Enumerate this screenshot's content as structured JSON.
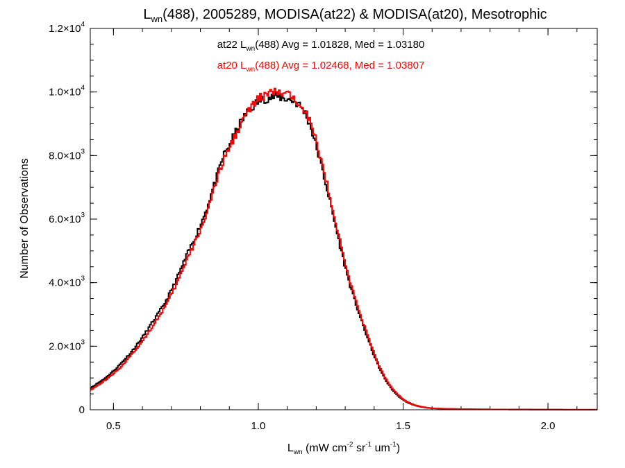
{
  "chart_data": {
    "type": "line",
    "style": "step-histogram",
    "title": {
      "pre": "L",
      "sub": "wn",
      "post": "(488), 2005289, MODISA(at22) & MODISA(at20), Mesotrophic"
    },
    "xlabel": {
      "pre": "L",
      "sub": "wn",
      "post": " (mW cm",
      "sup1": "-2",
      "mid": " sr",
      "sup2": "-1",
      "mid2": " um",
      "sup3": "-1",
      "end": ")"
    },
    "ylabel": "Number of Observations",
    "xlim": [
      0.42,
      2.17
    ],
    "ylim": [
      0,
      12000
    ],
    "xticks": [
      {
        "value": 0.5,
        "label": "0.5"
      },
      {
        "value": 1.0,
        "label": "1.0"
      },
      {
        "value": 1.5,
        "label": "1.5"
      },
      {
        "value": 2.0,
        "label": "2.0"
      }
    ],
    "yticks": [
      {
        "value": 0,
        "mant": "0",
        "exp": ""
      },
      {
        "value": 2000,
        "mant": "2.0×10",
        "exp": "3"
      },
      {
        "value": 4000,
        "mant": "4.0×10",
        "exp": "3"
      },
      {
        "value": 6000,
        "mant": "6.0×10",
        "exp": "3"
      },
      {
        "value": 8000,
        "mant": "8.0×10",
        "exp": "3"
      },
      {
        "value": 10000,
        "mant": "1.0×10",
        "exp": "4"
      },
      {
        "value": 12000,
        "mant": "1.2×10",
        "exp": "4"
      }
    ],
    "grid": false,
    "series": [
      {
        "name": "at22",
        "color": "#000000",
        "annotation": {
          "pre": "at22 L",
          "sub": "wn",
          "post": "(488) Avg = 1.01828, Med = 1.03180"
        },
        "x": [
          0.42,
          0.44,
          0.46,
          0.48,
          0.5,
          0.52,
          0.54,
          0.56,
          0.58,
          0.6,
          0.62,
          0.64,
          0.66,
          0.68,
          0.7,
          0.72,
          0.74,
          0.76,
          0.78,
          0.8,
          0.82,
          0.84,
          0.86,
          0.88,
          0.9,
          0.92,
          0.94,
          0.96,
          0.98,
          1.0,
          1.02,
          1.04,
          1.06,
          1.08,
          1.1,
          1.12,
          1.14,
          1.16,
          1.18,
          1.2,
          1.22,
          1.24,
          1.26,
          1.28,
          1.3,
          1.32,
          1.34,
          1.36,
          1.38,
          1.4,
          1.42,
          1.44,
          1.46,
          1.48,
          1.5,
          1.52,
          1.54,
          1.56,
          1.58,
          1.6,
          1.65,
          1.7,
          1.75,
          1.8,
          1.85,
          1.9,
          2.0,
          2.1,
          2.17
        ],
        "y": [
          680,
          800,
          920,
          1060,
          1220,
          1400,
          1600,
          1800,
          2030,
          2280,
          2550,
          2830,
          3100,
          3400,
          3760,
          4150,
          4580,
          5000,
          5380,
          5800,
          6280,
          6850,
          7420,
          8000,
          8320,
          8700,
          9050,
          9330,
          9530,
          9710,
          9780,
          9820,
          9860,
          9820,
          9780,
          9720,
          9610,
          9380,
          8940,
          8300,
          7600,
          6850,
          6050,
          5250,
          4500,
          3820,
          3250,
          2700,
          2200,
          1700,
          1280,
          930,
          660,
          460,
          310,
          210,
          140,
          95,
          65,
          45,
          30,
          20,
          15,
          12,
          10,
          8,
          5,
          3,
          2
        ]
      },
      {
        "name": "at20",
        "color": "#ff0000",
        "annotation": {
          "pre": "at20 L",
          "sub": "wn",
          "post": "(488) Avg = 1.02468, Med = 1.03807"
        },
        "x": [
          0.42,
          0.44,
          0.46,
          0.48,
          0.5,
          0.52,
          0.54,
          0.56,
          0.58,
          0.6,
          0.62,
          0.64,
          0.66,
          0.68,
          0.7,
          0.72,
          0.74,
          0.76,
          0.78,
          0.8,
          0.82,
          0.84,
          0.86,
          0.88,
          0.9,
          0.92,
          0.94,
          0.96,
          0.98,
          1.0,
          1.02,
          1.04,
          1.06,
          1.08,
          1.1,
          1.12,
          1.14,
          1.16,
          1.18,
          1.2,
          1.22,
          1.24,
          1.26,
          1.28,
          1.3,
          1.32,
          1.34,
          1.36,
          1.38,
          1.4,
          1.42,
          1.44,
          1.46,
          1.48,
          1.5,
          1.52,
          1.54,
          1.56,
          1.58,
          1.6,
          1.65,
          1.7,
          1.75,
          1.8,
          1.85,
          1.9,
          2.0,
          2.1,
          2.17
        ],
        "y": [
          620,
          730,
          850,
          980,
          1130,
          1300,
          1490,
          1700,
          1920,
          2160,
          2420,
          2700,
          2980,
          3260,
          3610,
          3990,
          4420,
          4850,
          5240,
          5650,
          6130,
          6700,
          7280,
          7860,
          8220,
          8620,
          8990,
          9320,
          9560,
          9780,
          9880,
          9960,
          10000,
          9960,
          9900,
          9820,
          9700,
          9480,
          9060,
          8450,
          7750,
          7000,
          6200,
          5400,
          4630,
          3940,
          3350,
          2790,
          2280,
          1770,
          1340,
          980,
          700,
          490,
          330,
          225,
          150,
          102,
          70,
          48,
          32,
          22,
          16,
          12,
          10,
          8,
          5,
          3,
          2
        ]
      }
    ]
  }
}
